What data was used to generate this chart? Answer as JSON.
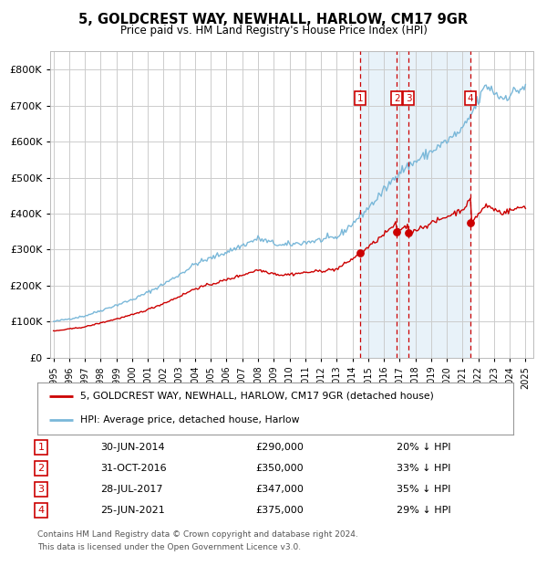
{
  "title": "5, GOLDCREST WAY, NEWHALL, HARLOW, CM17 9GR",
  "subtitle": "Price paid vs. HM Land Registry's House Price Index (HPI)",
  "footer_line1": "Contains HM Land Registry data © Crown copyright and database right 2024.",
  "footer_line2": "This data is licensed under the Open Government Licence v3.0.",
  "legend_label_red": "5, GOLDCREST WAY, NEWHALL, HARLOW, CM17 9GR (detached house)",
  "legend_label_blue": "HPI: Average price, detached house, Harlow",
  "transactions": [
    {
      "num": 1,
      "date": "30-JUN-2014",
      "price": 290000,
      "pct": "20%",
      "year": 2014.5
    },
    {
      "num": 2,
      "date": "31-OCT-2016",
      "price": 350000,
      "pct": "33%",
      "year": 2016.83
    },
    {
      "num": 3,
      "date": "28-JUL-2017",
      "price": 347000,
      "pct": "35%",
      "year": 2017.57
    },
    {
      "num": 4,
      "date": "25-JUN-2021",
      "price": 375000,
      "pct": "29%",
      "year": 2021.5
    }
  ],
  "table_rows": [
    [
      "1",
      "30-JUN-2014",
      "£290,000",
      "20% ↓ HPI"
    ],
    [
      "2",
      "31-OCT-2016",
      "£350,000",
      "33% ↓ HPI"
    ],
    [
      "3",
      "28-JUL-2017",
      "£347,000",
      "35% ↓ HPI"
    ],
    [
      "4",
      "25-JUN-2021",
      "£375,000",
      "29% ↓ HPI"
    ]
  ],
  "hpi_color": "#7ab8d9",
  "price_color": "#cc0000",
  "vline_color": "#cc0000",
  "shade_color": "#daeaf5",
  "background_color": "#ffffff",
  "grid_color": "#cccccc",
  "ylim": [
    0,
    850000
  ],
  "yticks": [
    0,
    100000,
    200000,
    300000,
    400000,
    500000,
    600000,
    700000,
    800000
  ],
  "xlim_start": 1994.8,
  "xlim_end": 2025.5,
  "xticks": [
    1995,
    1996,
    1997,
    1998,
    1999,
    2000,
    2001,
    2002,
    2003,
    2004,
    2005,
    2006,
    2007,
    2008,
    2009,
    2010,
    2011,
    2012,
    2013,
    2014,
    2015,
    2016,
    2017,
    2018,
    2019,
    2020,
    2021,
    2022,
    2023,
    2024,
    2025
  ]
}
